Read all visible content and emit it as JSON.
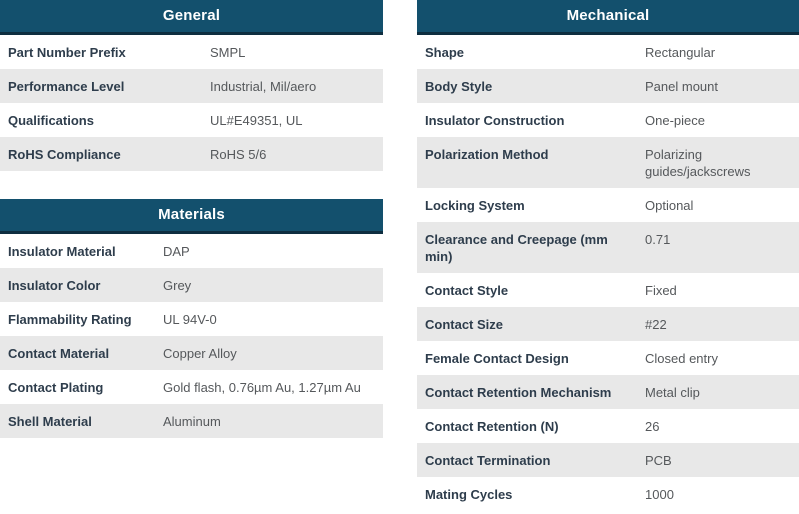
{
  "colors": {
    "header_bg": "#13506d",
    "header_border": "#0e2e40",
    "header_text": "#ffffff",
    "row_alt_bg": "#e8e8e8",
    "row_bg": "#ffffff",
    "label_text": "#2e3d4c",
    "value_text": "#55585b"
  },
  "tables": [
    {
      "title": "General",
      "rows": [
        {
          "label": "Part Number Prefix",
          "value": "SMPL"
        },
        {
          "label": "Performance Level",
          "value": "Industrial, Mil/aero"
        },
        {
          "label": "Qualifications",
          "value": "UL#E49351, UL"
        },
        {
          "label": "RoHS Compliance",
          "value": "RoHS 5/6"
        }
      ]
    },
    {
      "title": "Materials",
      "rows": [
        {
          "label": "Insulator Material",
          "value": "DAP"
        },
        {
          "label": "Insulator Color",
          "value": "Grey"
        },
        {
          "label": "Flammability Rating",
          "value": "UL 94V-0"
        },
        {
          "label": "Contact Material",
          "value": "Copper Alloy"
        },
        {
          "label": "Contact Plating",
          "value": "Gold flash, 0.76µm Au, 1.27µm Au"
        },
        {
          "label": "Shell Material",
          "value": "Aluminum"
        }
      ]
    },
    {
      "title": "Mechanical",
      "rows": [
        {
          "label": "Shape",
          "value": "Rectangular"
        },
        {
          "label": "Body Style",
          "value": "Panel mount"
        },
        {
          "label": "Insulator Construction",
          "value": "One-piece"
        },
        {
          "label": "Polarization Method",
          "value": "Polarizing guides/jackscrews"
        },
        {
          "label": "Locking System",
          "value": "Optional"
        },
        {
          "label": "Clearance and Creepage (mm min)",
          "value": "0.71"
        },
        {
          "label": "Contact Style",
          "value": "Fixed"
        },
        {
          "label": "Contact Size",
          "value": "#22"
        },
        {
          "label": "Female Contact Design",
          "value": "Closed entry"
        },
        {
          "label": "Contact Retention Mechanism",
          "value": "Metal clip"
        },
        {
          "label": "Contact Retention (N)",
          "value": "26"
        },
        {
          "label": "Contact Termination",
          "value": "PCB"
        },
        {
          "label": "Mating Cycles",
          "value": "1000"
        }
      ]
    }
  ]
}
